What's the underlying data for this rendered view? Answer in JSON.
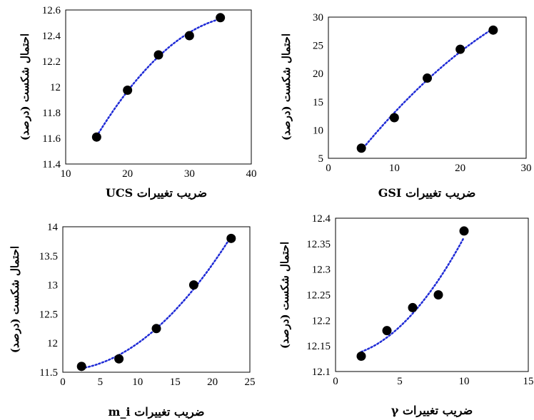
{
  "chart_data": [
    {
      "type": "scatter",
      "xlabel": "ضریب تغییرات UCS",
      "ylabel": "احتمال شکست (درصد)",
      "xlim": [
        10,
        40
      ],
      "ylim": [
        11.4,
        12.6
      ],
      "xticks": [
        "10",
        "20",
        "30",
        "40"
      ],
      "yticks": [
        "11.4",
        "11.6",
        "11.8",
        "12",
        "12.2",
        "12.4",
        "12.6"
      ],
      "trendline": "dotted",
      "series": [
        {
          "x": [
            15,
            20,
            25,
            30,
            35
          ],
          "y": [
            11.61,
            11.975,
            12.25,
            12.4,
            12.54
          ]
        }
      ]
    },
    {
      "type": "scatter",
      "xlabel": "ضریب تغییرات GSI",
      "ylabel": "احتمال شکست (درصد)",
      "xlim": [
        0,
        30
      ],
      "ylim": [
        5,
        30
      ],
      "xticks": [
        "0",
        "10",
        "20",
        "30"
      ],
      "yticks": [
        "5",
        "10",
        "15",
        "20",
        "25",
        "30"
      ],
      "trendline": "dotted",
      "series": [
        {
          "x": [
            5,
            10,
            15,
            20,
            25
          ],
          "y": [
            6.8,
            12.2,
            19.2,
            24.3,
            27.7
          ]
        }
      ]
    },
    {
      "type": "scatter",
      "xlabel": "ضریب تغییرات m_i",
      "ylabel": "احتمال شکست (درصد)",
      "xlim": [
        0,
        25
      ],
      "ylim": [
        11.5,
        14
      ],
      "xticks": [
        "0",
        "5",
        "10",
        "15",
        "20",
        "25"
      ],
      "yticks": [
        "11.5",
        "12",
        "12.5",
        "13",
        "13.5",
        "14"
      ],
      "trendline": "dotted",
      "series": [
        {
          "x": [
            2.5,
            7.5,
            12.5,
            17.5,
            22.5
          ],
          "y": [
            11.6,
            11.73,
            12.25,
            13.0,
            13.8
          ]
        }
      ]
    },
    {
      "type": "scatter",
      "xlabel": "ضریب تغییرات γ",
      "ylabel": "احتمال شکست (درصد)",
      "xlim": [
        0,
        15
      ],
      "ylim": [
        12.1,
        12.4
      ],
      "xticks": [
        "0",
        "5",
        "10",
        "15"
      ],
      "yticks": [
        "12.1",
        "12.15",
        "12.2",
        "12.25",
        "12.3",
        "12.35",
        "12.4"
      ],
      "trendline": "dotted",
      "series": [
        {
          "x": [
            2,
            4,
            6,
            8,
            10
          ],
          "y": [
            12.13,
            12.18,
            12.225,
            12.25,
            12.375
          ]
        }
      ]
    }
  ],
  "colors": {
    "marker": "#000000",
    "trendline": "#1f2bd6",
    "frame": "#000000"
  }
}
